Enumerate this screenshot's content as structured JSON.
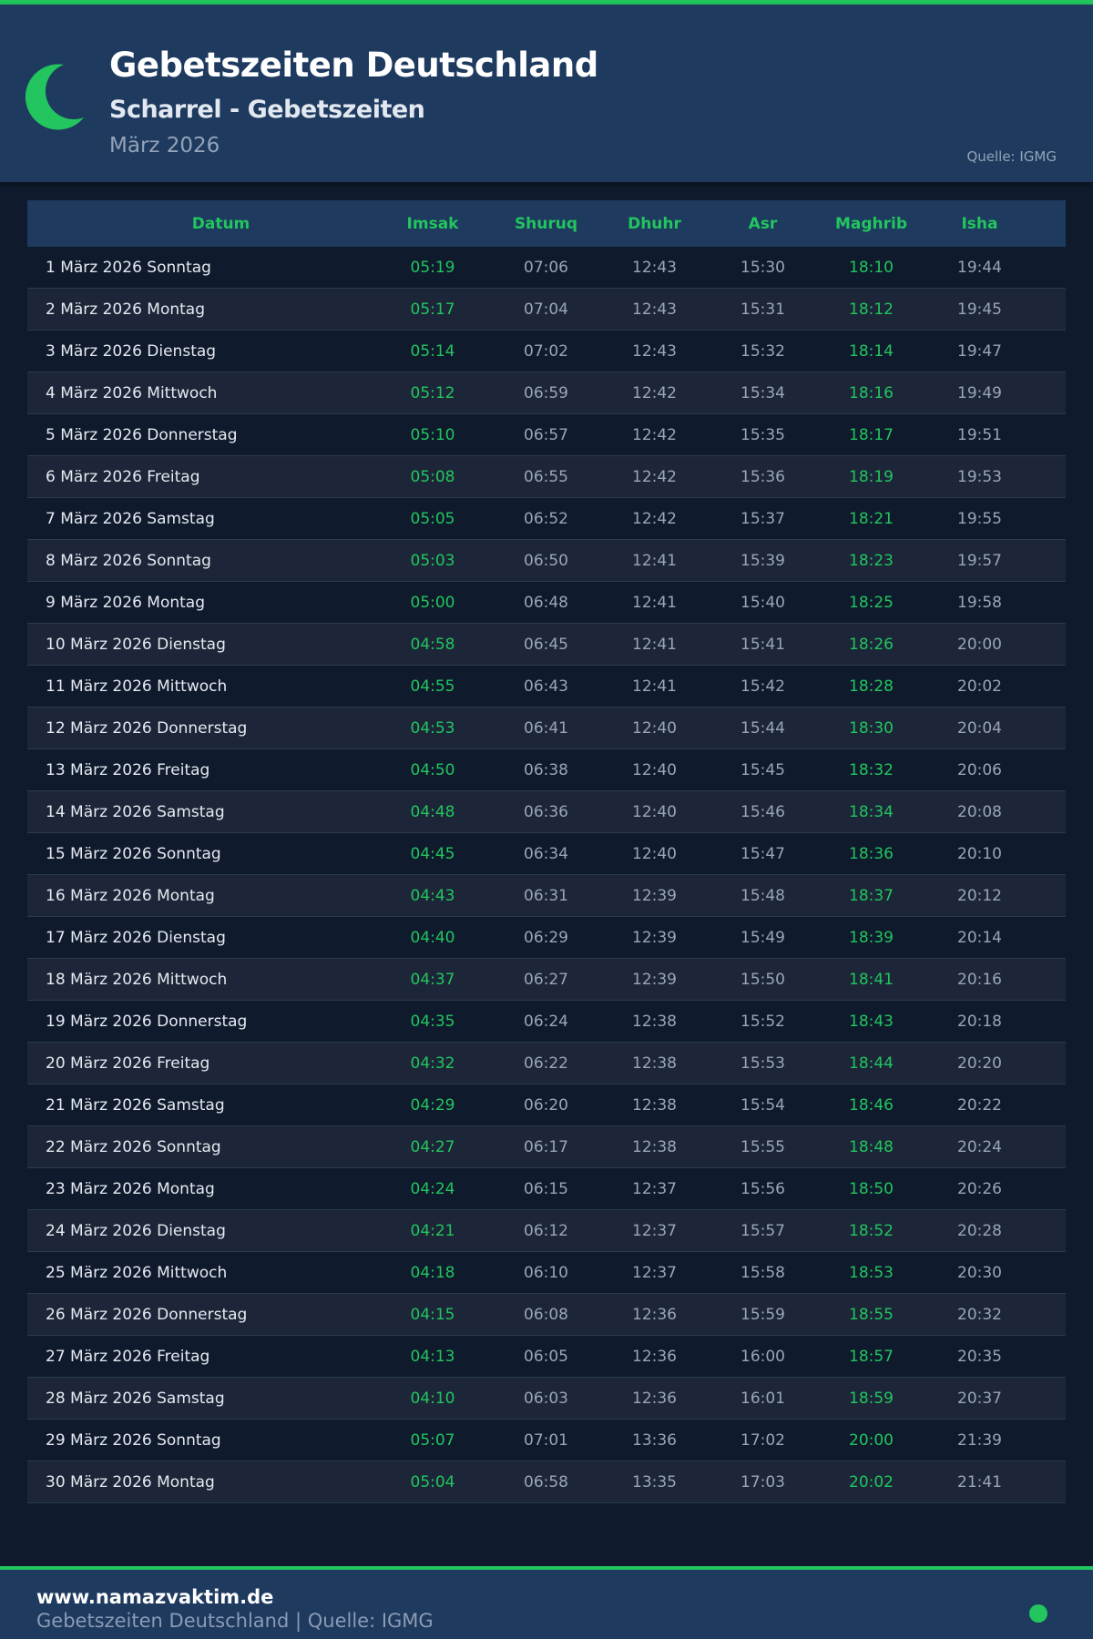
{
  "header": {
    "title": "Gebetszeiten Deutschland",
    "subtitle": "Scharrel - Gebetszeiten",
    "month": "März 2026",
    "source": "Quelle: IGMG",
    "icon": "crescent-moon-icon"
  },
  "colors": {
    "accent": "#22c55e",
    "header_bg": "#1e3a5f",
    "page_bg": "#0f1a2d"
  },
  "table": {
    "columns": [
      "Datum",
      "Imsak",
      "Shuruq",
      "Dhuhr",
      "Asr",
      "Maghrib",
      "Isha"
    ],
    "rows": [
      [
        "1 März 2026 Sonntag",
        "05:19",
        "07:06",
        "12:43",
        "15:30",
        "18:10",
        "19:44"
      ],
      [
        "2 März 2026 Montag",
        "05:17",
        "07:04",
        "12:43",
        "15:31",
        "18:12",
        "19:45"
      ],
      [
        "3 März 2026 Dienstag",
        "05:14",
        "07:02",
        "12:43",
        "15:32",
        "18:14",
        "19:47"
      ],
      [
        "4 März 2026 Mittwoch",
        "05:12",
        "06:59",
        "12:42",
        "15:34",
        "18:16",
        "19:49"
      ],
      [
        "5 März 2026 Donnerstag",
        "05:10",
        "06:57",
        "12:42",
        "15:35",
        "18:17",
        "19:51"
      ],
      [
        "6 März 2026 Freitag",
        "05:08",
        "06:55",
        "12:42",
        "15:36",
        "18:19",
        "19:53"
      ],
      [
        "7 März 2026 Samstag",
        "05:05",
        "06:52",
        "12:42",
        "15:37",
        "18:21",
        "19:55"
      ],
      [
        "8 März 2026 Sonntag",
        "05:03",
        "06:50",
        "12:41",
        "15:39",
        "18:23",
        "19:57"
      ],
      [
        "9 März 2026 Montag",
        "05:00",
        "06:48",
        "12:41",
        "15:40",
        "18:25",
        "19:58"
      ],
      [
        "10 März 2026 Dienstag",
        "04:58",
        "06:45",
        "12:41",
        "15:41",
        "18:26",
        "20:00"
      ],
      [
        "11 März 2026 Mittwoch",
        "04:55",
        "06:43",
        "12:41",
        "15:42",
        "18:28",
        "20:02"
      ],
      [
        "12 März 2026 Donnerstag",
        "04:53",
        "06:41",
        "12:40",
        "15:44",
        "18:30",
        "20:04"
      ],
      [
        "13 März 2026 Freitag",
        "04:50",
        "06:38",
        "12:40",
        "15:45",
        "18:32",
        "20:06"
      ],
      [
        "14 März 2026 Samstag",
        "04:48",
        "06:36",
        "12:40",
        "15:46",
        "18:34",
        "20:08"
      ],
      [
        "15 März 2026 Sonntag",
        "04:45",
        "06:34",
        "12:40",
        "15:47",
        "18:36",
        "20:10"
      ],
      [
        "16 März 2026 Montag",
        "04:43",
        "06:31",
        "12:39",
        "15:48",
        "18:37",
        "20:12"
      ],
      [
        "17 März 2026 Dienstag",
        "04:40",
        "06:29",
        "12:39",
        "15:49",
        "18:39",
        "20:14"
      ],
      [
        "18 März 2026 Mittwoch",
        "04:37",
        "06:27",
        "12:39",
        "15:50",
        "18:41",
        "20:16"
      ],
      [
        "19 März 2026 Donnerstag",
        "04:35",
        "06:24",
        "12:38",
        "15:52",
        "18:43",
        "20:18"
      ],
      [
        "20 März 2026 Freitag",
        "04:32",
        "06:22",
        "12:38",
        "15:53",
        "18:44",
        "20:20"
      ],
      [
        "21 März 2026 Samstag",
        "04:29",
        "06:20",
        "12:38",
        "15:54",
        "18:46",
        "20:22"
      ],
      [
        "22 März 2026 Sonntag",
        "04:27",
        "06:17",
        "12:38",
        "15:55",
        "18:48",
        "20:24"
      ],
      [
        "23 März 2026 Montag",
        "04:24",
        "06:15",
        "12:37",
        "15:56",
        "18:50",
        "20:26"
      ],
      [
        "24 März 2026 Dienstag",
        "04:21",
        "06:12",
        "12:37",
        "15:57",
        "18:52",
        "20:28"
      ],
      [
        "25 März 2026 Mittwoch",
        "04:18",
        "06:10",
        "12:37",
        "15:58",
        "18:53",
        "20:30"
      ],
      [
        "26 März 2026 Donnerstag",
        "04:15",
        "06:08",
        "12:36",
        "15:59",
        "18:55",
        "20:32"
      ],
      [
        "27 März 2026 Freitag",
        "04:13",
        "06:05",
        "12:36",
        "16:00",
        "18:57",
        "20:35"
      ],
      [
        "28 März 2026 Samstag",
        "04:10",
        "06:03",
        "12:36",
        "16:01",
        "18:59",
        "20:37"
      ],
      [
        "29 März 2026 Sonntag",
        "05:07",
        "07:01",
        "13:36",
        "17:02",
        "20:00",
        "21:39"
      ],
      [
        "30 März 2026 Montag",
        "05:04",
        "06:58",
        "13:35",
        "17:03",
        "20:02",
        "21:41"
      ]
    ]
  },
  "footer": {
    "site": "www.namazvaktim.de",
    "text": "Gebetszeiten Deutschland | Quelle: IGMG"
  }
}
